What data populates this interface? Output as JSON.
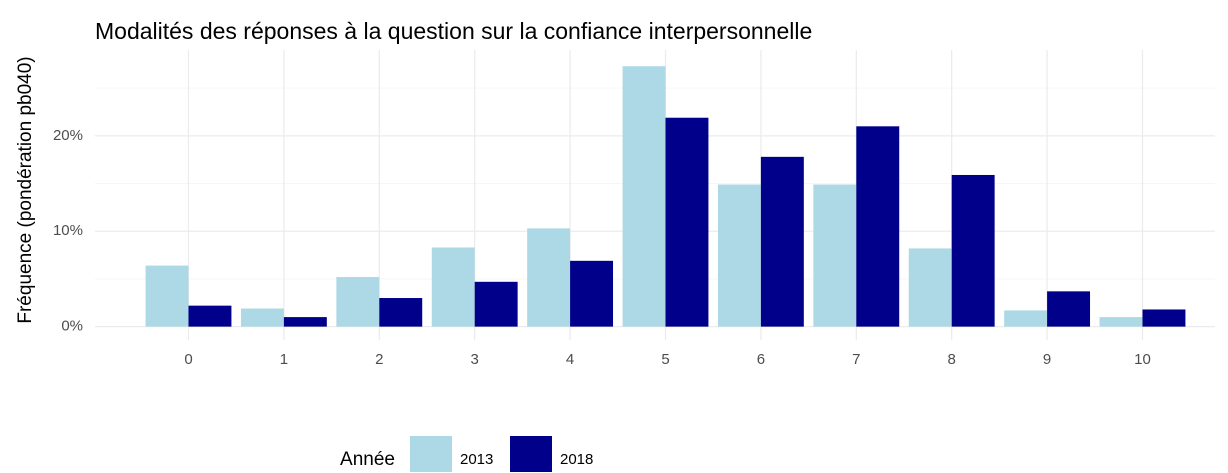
{
  "chart_data": {
    "type": "bar",
    "title": "Modalités des réponses à la question sur la confiance interpersonnelle",
    "y_label": "Fréquence (pondération pb040)",
    "legend_title": "Année",
    "categories": [
      "0",
      "1",
      "2",
      "3",
      "4",
      "5",
      "6",
      "7",
      "8",
      "9",
      "10"
    ],
    "series": [
      {
        "name": "2013",
        "color": "#add8e6",
        "values": [
          6.4,
          1.9,
          5.2,
          8.3,
          10.3,
          27.3,
          14.9,
          14.9,
          8.2,
          1.7,
          1.0
        ]
      },
      {
        "name": "2018",
        "color": "#00008b",
        "values": [
          2.2,
          1.0,
          3.0,
          4.7,
          6.9,
          21.9,
          17.8,
          21.0,
          15.9,
          3.7,
          1.8
        ]
      }
    ],
    "ylim": [
      -1.4,
      29
    ],
    "yticks": [
      {
        "value": 0,
        "label": "0%"
      },
      {
        "value": 10,
        "label": "10%"
      },
      {
        "value": 20,
        "label": "20%"
      }
    ],
    "minor_yticks": [
      5,
      15,
      25
    ],
    "grid": true,
    "legend_position": "bottom"
  }
}
